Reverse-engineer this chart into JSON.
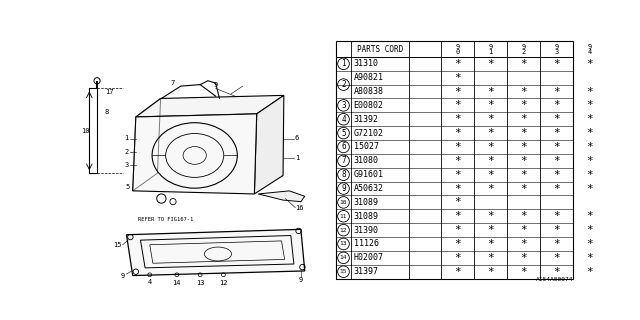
{
  "bg_color": "#ffffff",
  "rows": [
    {
      "num": "1",
      "code": "31310",
      "stars": [
        1,
        1,
        1,
        1,
        1
      ],
      "show_num": true
    },
    {
      "num": "2",
      "code": "A90821",
      "stars": [
        1,
        0,
        0,
        0,
        0
      ],
      "show_num": false
    },
    {
      "num": "2",
      "code": "A80838",
      "stars": [
        1,
        1,
        1,
        1,
        1
      ],
      "show_num": true
    },
    {
      "num": "3",
      "code": "E00802",
      "stars": [
        1,
        1,
        1,
        1,
        1
      ],
      "show_num": true
    },
    {
      "num": "4",
      "code": "31392",
      "stars": [
        1,
        1,
        1,
        1,
        1
      ],
      "show_num": true
    },
    {
      "num": "5",
      "code": "G72102",
      "stars": [
        1,
        1,
        1,
        1,
        1
      ],
      "show_num": true
    },
    {
      "num": "6",
      "code": "15027",
      "stars": [
        1,
        1,
        1,
        1,
        1
      ],
      "show_num": true
    },
    {
      "num": "7",
      "code": "31080",
      "stars": [
        1,
        1,
        1,
        1,
        1
      ],
      "show_num": true
    },
    {
      "num": "8",
      "code": "G91601",
      "stars": [
        1,
        1,
        1,
        1,
        1
      ],
      "show_num": true
    },
    {
      "num": "9",
      "code": "A50632",
      "stars": [
        1,
        1,
        1,
        1,
        1
      ],
      "show_num": true
    },
    {
      "num": "10",
      "code": "31089",
      "stars": [
        1,
        0,
        0,
        0,
        0
      ],
      "show_num": true
    },
    {
      "num": "11",
      "code": "31089",
      "stars": [
        1,
        1,
        1,
        1,
        1
      ],
      "show_num": true
    },
    {
      "num": "12",
      "code": "31390",
      "stars": [
        1,
        1,
        1,
        1,
        1
      ],
      "show_num": true
    },
    {
      "num": "13",
      "code": "11126",
      "stars": [
        1,
        1,
        1,
        1,
        1
      ],
      "show_num": true
    },
    {
      "num": "14",
      "code": "H02007",
      "stars": [
        1,
        1,
        1,
        1,
        1
      ],
      "show_num": true
    },
    {
      "num": "15",
      "code": "31397",
      "stars": [
        1,
        1,
        1,
        1,
        1
      ],
      "show_num": true
    }
  ],
  "footer_text": "AI54A00074",
  "refer_text": "REFER TO FIG167-1",
  "line_color": "#000000",
  "text_color": "#000000",
  "font_size": 6.0
}
